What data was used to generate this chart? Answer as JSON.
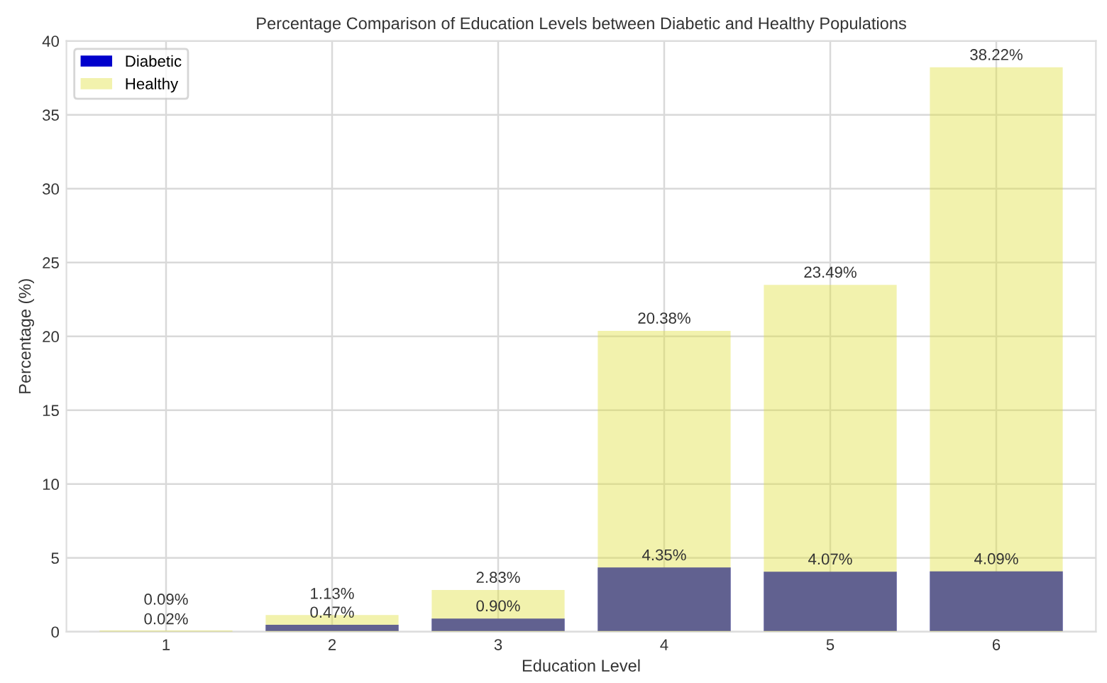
{
  "chart_data": {
    "type": "bar",
    "title": "Percentage Comparison of Education Levels between Diabetic and Healthy Populations",
    "xlabel": "Education Level",
    "ylabel": "Percentage (%)",
    "categories": [
      "1",
      "2",
      "3",
      "4",
      "5",
      "6"
    ],
    "series": [
      {
        "name": "Diabetic",
        "color": "#0000cc",
        "values": [
          0.02,
          0.47,
          0.9,
          4.35,
          4.07,
          4.09
        ],
        "value_labels": [
          "0.02%",
          "0.47%",
          "0.90%",
          "4.35%",
          "4.07%",
          "4.09%"
        ]
      },
      {
        "name": "Healthy",
        "color": "#e0e040",
        "values": [
          0.09,
          1.13,
          2.83,
          20.38,
          23.49,
          38.22
        ],
        "value_labels": [
          "0.09%",
          "1.13%",
          "2.83%",
          "20.38%",
          "23.49%",
          "38.22%"
        ]
      }
    ],
    "ylim": [
      0,
      40
    ],
    "yticks": [
      0,
      5,
      10,
      15,
      20,
      25,
      30,
      35,
      40
    ],
    "grid": true,
    "legend": "top left"
  }
}
